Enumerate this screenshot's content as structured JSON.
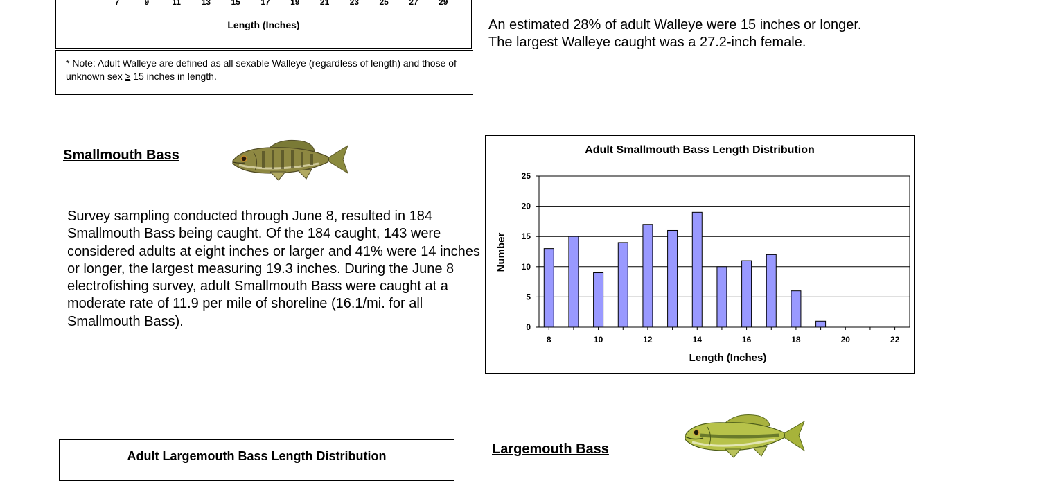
{
  "walleye_chart": {
    "tick_labels": [
      "7",
      "9",
      "11",
      "13",
      "15",
      "17",
      "19",
      "21",
      "23",
      "25",
      "27",
      "29"
    ],
    "xlabel": "Length (Inches)"
  },
  "walleye_note": {
    "prefix": "* Note: Adult Walleye are defined as all sexable Walleye (regardless of length) and those of unknown sex ",
    "symbol": "≥",
    "suffix": " 15 inches in length."
  },
  "walleye_paragraph": "An estimated 28% of adult Walleye were 15 inches or longer. The largest Walleye caught was a 27.2-inch female.",
  "smallmouth": {
    "heading": "Smallmouth Bass",
    "fish_icon": "smallmouth-bass-fish",
    "paragraph": "Survey sampling conducted through June 8, resulted in 184 Smallmouth Bass being caught. Of the 184 caught, 143 were considered adults at eight inches or larger and 41% were 14 inches or longer, the largest measuring 19.3 inches. During the June 8 electrofishing survey, adult Smallmouth Bass were caught at a moderate rate of 11.9 per mile of shoreline (16.1/mi. for all Smallmouth Bass)."
  },
  "largemouth": {
    "heading": "Largemouth Bass",
    "fish_icon": "largemouth-bass-fish",
    "chart_title": "Adult Largemouth Bass Length Distribution"
  },
  "colors": {
    "bar_fill": "#9999ff",
    "bar_stroke": "#000000"
  },
  "chart_data": {
    "type": "bar",
    "title": "Adult Smallmouth Bass Length Distribution",
    "xlabel": "Length (Inches)",
    "ylabel": "Number",
    "categories": [
      8,
      9,
      10,
      11,
      12,
      13,
      14,
      15,
      16,
      17,
      18,
      19,
      20,
      21,
      22
    ],
    "values": [
      13,
      15,
      9,
      14,
      17,
      16,
      19,
      10,
      11,
      12,
      6,
      1,
      0,
      0,
      0
    ],
    "x_tick_labels": [
      "8",
      "10",
      "12",
      "14",
      "16",
      "18",
      "20",
      "22"
    ],
    "y_tick_labels": [
      "0",
      "5",
      "10",
      "15",
      "20",
      "25"
    ],
    "ylim": [
      0,
      25
    ],
    "grid": true,
    "legend": "none"
  }
}
